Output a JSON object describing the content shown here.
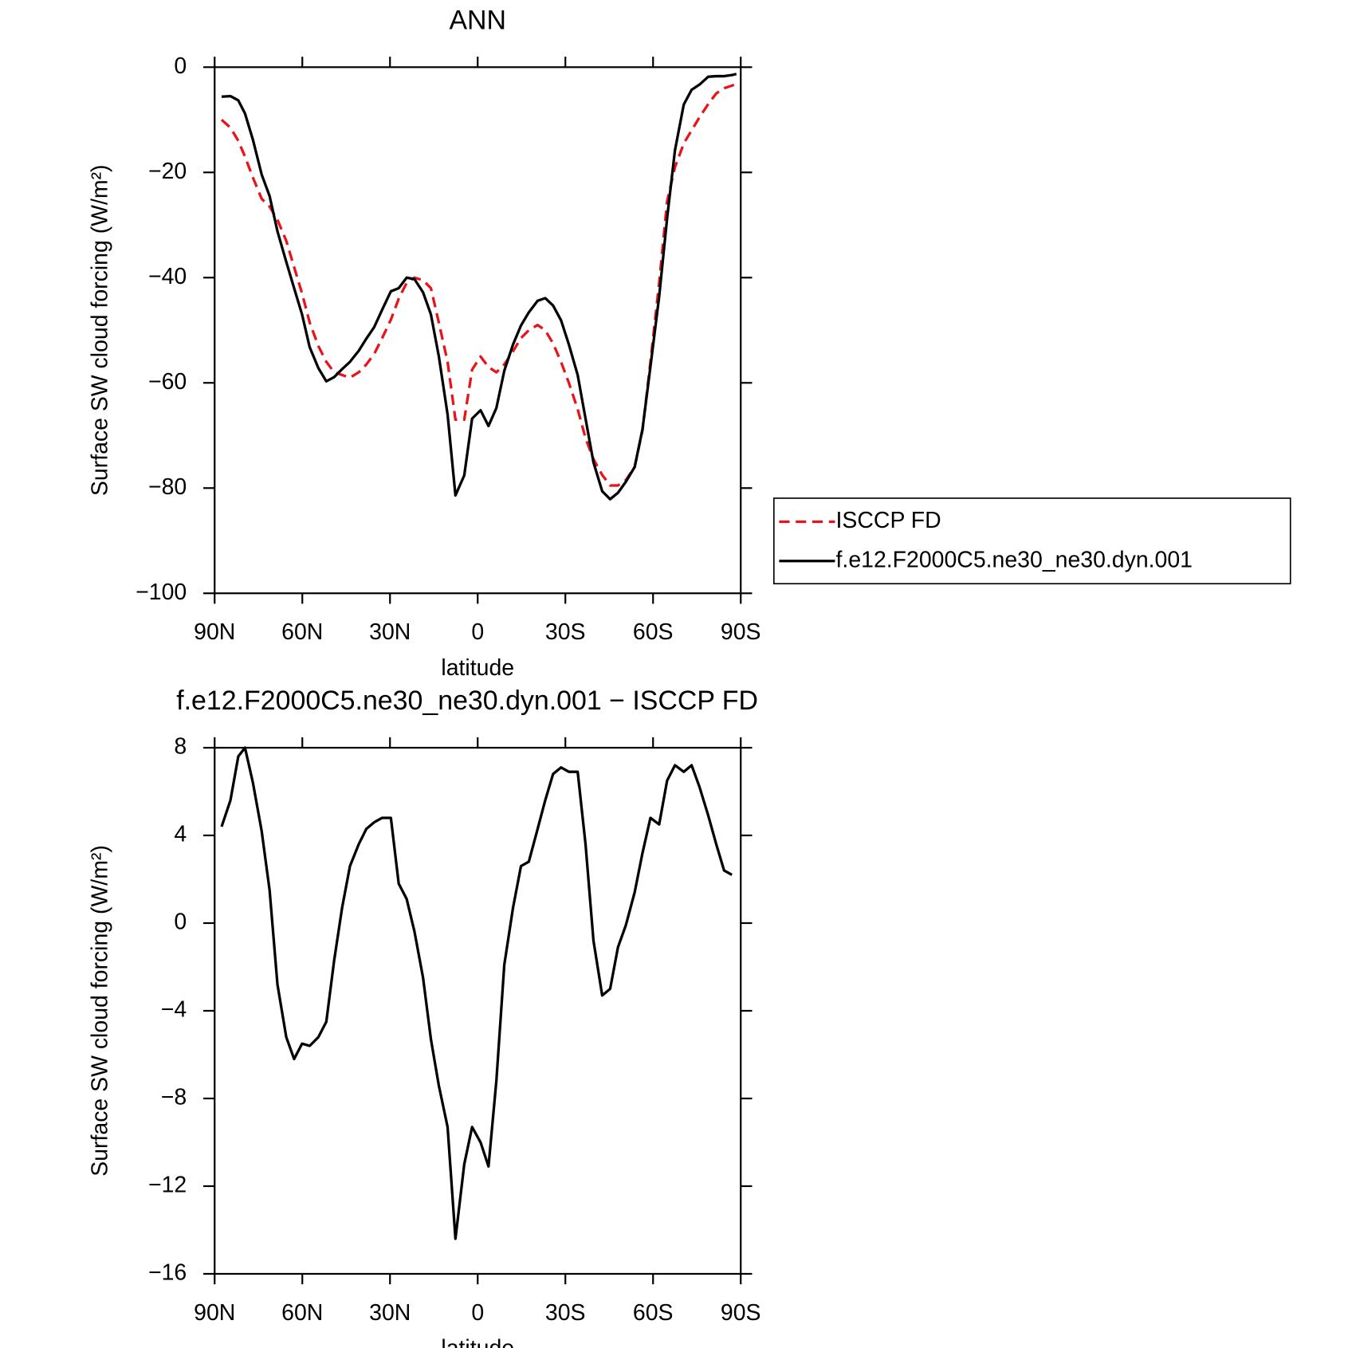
{
  "chart_data": [
    {
      "type": "line",
      "title": "ANN",
      "xlabel": "latitude",
      "ylabel": "Surface SW cloud forcing (W/m²)",
      "xlim": [
        90,
        -90
      ],
      "ylim": [
        -100,
        0
      ],
      "xticks": [
        {
          "value": 90,
          "label": "90N"
        },
        {
          "value": 60,
          "label": "60N"
        },
        {
          "value": 30,
          "label": "30N"
        },
        0,
        {
          "value": -30,
          "label": "30S"
        },
        {
          "value": -60,
          "label": "60S"
        },
        {
          "value": -90,
          "label": "90S"
        }
      ],
      "yticks": [
        0,
        {
          "value": -20,
          "label": "−20"
        },
        {
          "value": -40,
          "label": "−40"
        },
        {
          "value": -60,
          "label": "−60"
        },
        {
          "value": -80,
          "label": "−80"
        },
        {
          "value": -100,
          "label": "−100"
        }
      ],
      "legend": "right",
      "x": [
        87.6,
        84.6,
        81.9,
        79.6,
        76.9,
        73.9,
        71.2,
        68.5,
        65.5,
        62.8,
        60.1,
        57.5,
        54.5,
        51.8,
        49.1,
        46.4,
        43.7,
        40.7,
        38.1,
        35.4,
        32.7,
        29.7,
        27,
        24.3,
        21.6,
        18.7,
        16,
        13.3,
        10.3,
        7.6,
        4.6,
        1.9,
        -1,
        -3.7,
        -6.4,
        -9.1,
        -12.1,
        -14.8,
        -17.5,
        -20.5,
        -23.1,
        -25.8,
        -28.5,
        -31.2,
        -34.2,
        -36.9,
        -39.6,
        -42.6,
        -45.3,
        -48,
        -50.7,
        -53.7,
        -56.4,
        -59.1,
        -62.1,
        -64.8,
        -67.5,
        -70.5,
        -73.2,
        -75.9,
        -78.9,
        -81.6,
        -84.3,
        -87,
        -88.5
      ],
      "series": [
        {
          "name": "ISCCP FD",
          "color": "#e8141a",
          "style": "dashed",
          "values": [
            -10,
            -11.5,
            -14,
            -17,
            -21,
            -25,
            -26.5,
            -29,
            -33,
            -38,
            -43,
            -48.5,
            -53,
            -56,
            -58,
            -58.5,
            -59,
            -58,
            -56.5,
            -54.5,
            -51.5,
            -48,
            -44,
            -41,
            -40,
            -40.5,
            -42,
            -48.5,
            -56,
            -67,
            -67,
            -57.5,
            -55,
            -57,
            -58,
            -56.5,
            -54,
            -51.5,
            -50,
            -49,
            -50,
            -52.5,
            -56,
            -60,
            -65,
            -70.5,
            -74.5,
            -77.5,
            -79.5,
            -79.5,
            -78.5,
            -76,
            -69,
            -56,
            -41,
            -25.5,
            -19,
            -14.5,
            -12,
            -9.5,
            -7,
            -5,
            -4,
            -3.5,
            -3.2
          ]
        },
        {
          "name": "f.e12.F2000C5.ne30_ne30.dyn.001",
          "color": "#000000",
          "style": "solid",
          "values": [
            -5.6,
            -5.5,
            -6.3,
            -8.8,
            -13.8,
            -20.4,
            -24.5,
            -31.2,
            -37,
            -42,
            -47,
            -53.2,
            -57.2,
            -59.7,
            -58.9,
            -57.4,
            -56,
            -53.9,
            -51.6,
            -49.4,
            -46.1,
            -42.6,
            -42,
            -40,
            -40.3,
            -42.8,
            -47,
            -54.9,
            -66,
            -81.4,
            -77.6,
            -66.8,
            -65.2,
            -68.2,
            -64.8,
            -57.7,
            -52.7,
            -49.1,
            -46.6,
            -44.4,
            -43.9,
            -45.3,
            -48.1,
            -52.7,
            -58.5,
            -66.8,
            -75.1,
            -80.6,
            -82.1,
            -80.9,
            -78.8,
            -76,
            -68.8,
            -56.9,
            -43.6,
            -28.7,
            -15.8,
            -7.1,
            -4.3,
            -3.3,
            -1.8,
            -1.7,
            -1.7,
            -1.5,
            -1.3
          ]
        }
      ]
    },
    {
      "type": "line",
      "title": "f.e12.F2000C5.ne30_ne30.dyn.001 − ISCCP FD",
      "xlabel": "latitude",
      "ylabel": "Surface SW cloud forcing (W/m²)",
      "xlim": [
        90,
        -90
      ],
      "ylim": [
        -16,
        8
      ],
      "xticks": [
        {
          "value": 90,
          "label": "90N"
        },
        {
          "value": 60,
          "label": "60N"
        },
        {
          "value": 30,
          "label": "30N"
        },
        0,
        {
          "value": -30,
          "label": "30S"
        },
        {
          "value": -60,
          "label": "60S"
        },
        {
          "value": -90,
          "label": "90S"
        }
      ],
      "yticks": [
        8,
        4,
        0,
        {
          "value": -4,
          "label": "−4"
        },
        {
          "value": -8,
          "label": "−8"
        },
        {
          "value": -12,
          "label": "−12"
        },
        {
          "value": -16,
          "label": "−16"
        }
      ],
      "x": [
        87.6,
        84.6,
        81.9,
        79.6,
        76.9,
        73.9,
        71.2,
        68.5,
        65.5,
        62.8,
        60.1,
        57.5,
        54.5,
        51.8,
        49.1,
        46.4,
        43.7,
        40.7,
        38.1,
        35.4,
        32.7,
        29.7,
        27,
        24.3,
        21.6,
        18.7,
        16,
        13.3,
        10.3,
        7.6,
        4.6,
        1.9,
        -1,
        -3.7,
        -6.4,
        -9.1,
        -12.1,
        -14.8,
        -17.5,
        -20.5,
        -23.1,
        -25.8,
        -28.5,
        -31.2,
        -34.2,
        -36.9,
        -39.6,
        -42.6,
        -45.3,
        -48,
        -50.7,
        -53.7,
        -56.4,
        -59.1,
        -62.1,
        -64.8,
        -67.5,
        -70.5,
        -73.2,
        -75.9,
        -78.9,
        -81.6,
        -84.3,
        -87
      ],
      "series": [
        {
          "color": "#000000",
          "style": "solid",
          "values": [
            4.4,
            5.6,
            7.6,
            8.0,
            6.4,
            4.2,
            1.5,
            -2.8,
            -5.2,
            -6.2,
            -5.5,
            -5.6,
            -5.2,
            -4.5,
            -1.7,
            0.7,
            2.6,
            3.6,
            4.3,
            4.6,
            4.8,
            4.8,
            1.8,
            1.1,
            -0.4,
            -2.5,
            -5.3,
            -7.4,
            -9.3,
            -14.4,
            -11.0,
            -9.3,
            -10.0,
            -11.1,
            -7.2,
            -1.9,
            0.7,
            2.6,
            2.8,
            4.3,
            5.6,
            6.8,
            7.1,
            6.9,
            6.9,
            3.6,
            -0.8,
            -3.3,
            -3.0,
            -1.1,
            -0.1,
            1.4,
            3.2,
            4.8,
            4.5,
            6.5,
            7.2,
            6.9,
            7.2,
            6.2,
            4.9,
            3.6,
            2.4,
            2.2
          ]
        }
      ]
    }
  ]
}
